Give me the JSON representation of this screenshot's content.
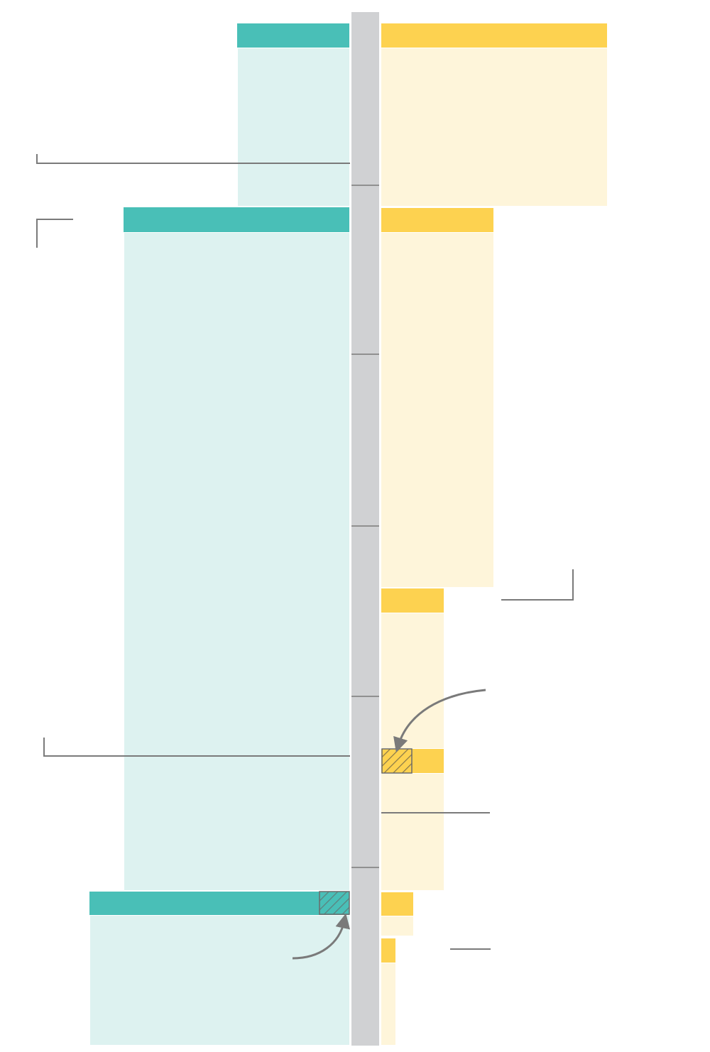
{
  "colors": {
    "teal_header": "#49bfb7",
    "teal_fill": "#ddf2f0",
    "yellow_header": "#fdd250",
    "yellow_fill": "#fef5da",
    "axis": "#d0d1d3",
    "line": "#7a7a7a"
  },
  "left_blocks": [
    {
      "name": "left-block-1"
    },
    {
      "name": "left-block-2"
    },
    {
      "name": "left-block-3"
    }
  ],
  "right_blocks": [
    {
      "name": "right-block-1"
    },
    {
      "name": "right-block-2"
    },
    {
      "name": "right-block-3"
    },
    {
      "name": "right-block-4"
    },
    {
      "name": "right-block-5"
    },
    {
      "name": "right-block-6"
    }
  ],
  "icons": [
    "curved-arrow-icon",
    "hatched-marker-icon"
  ]
}
